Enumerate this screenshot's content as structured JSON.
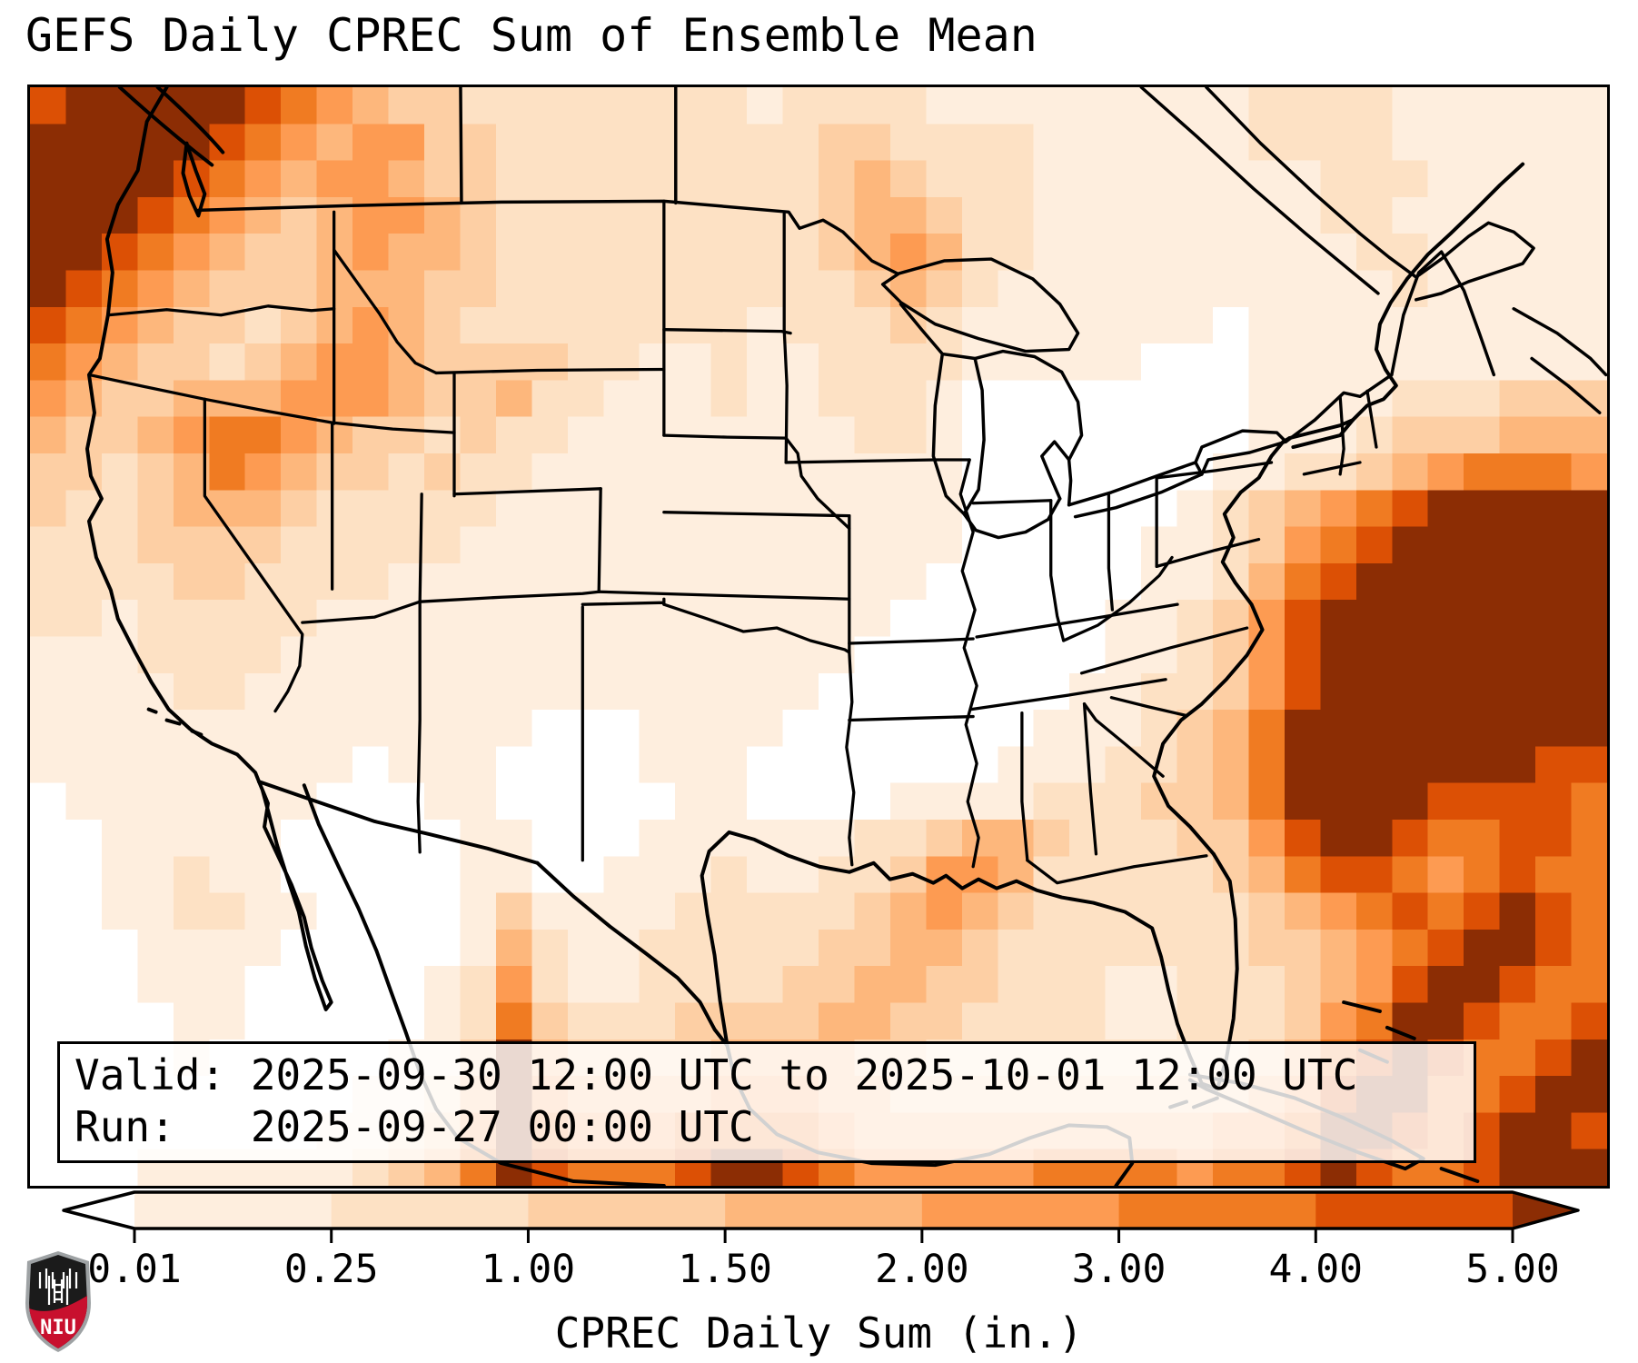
{
  "title": "GEFS Daily CPREC Sum of Ensemble Mean",
  "annotation": {
    "line1": "Valid: 2025-09-30 12:00 UTC to 2025-10-01 12:00 UTC",
    "line2": "Run:   2025-09-27 00:00 UTC"
  },
  "colorbar": {
    "label": "CPREC Daily Sum (in.)",
    "ticks": [
      "0.01",
      "0.25",
      "1.00",
      "1.50",
      "2.00",
      "3.00",
      "4.00",
      "5.00"
    ],
    "bin_colors": [
      "#feeede",
      "#fde1c4",
      "#fdcfa4",
      "#fdb77c",
      "#fd9b52",
      "#f07b22",
      "#dc5005"
    ],
    "under_color": "#ffffff",
    "over_color": "#8c2d04",
    "outline_color": "#000000"
  },
  "logo": {
    "text": "NIU",
    "red": "#c8102e",
    "black": "#1b1b1b",
    "silver": "#9ea2a4"
  },
  "map": {
    "line_color": "#000000",
    "palette": [
      "#ffffff",
      "#feeede",
      "#fde1c4",
      "#fdcfa4",
      "#fdb77c",
      "#fd9b52",
      "#f07b22",
      "#dc5005",
      "#8c2d04"
    ],
    "grid_cols": 44,
    "grid_rows_count": 30,
    "grid_rows": [
      "78888876543322222222122221111111112222111111",
      "88888765455332222222223322221111112222111111",
      "88887654554332222222223432221111111122211111",
      "88876543455432222222223443221111111122111111",
      "88765433454432222222223454221111111112211111",
      "87654333444332222222222343211111111111211111",
      "76543323454322222222122232111111101111111111",
      "65433234554333322112112222111110001111111111",
      "54334445554334221112112221000000001111222333",
      "43345665433232211111111221000000001112333444",
      "33234654332322111111111111000000011223456665",
      "32234443222221111111111111000000123456788888",
      "22233332222211111111111111000001123567888888",
      "22223322221111111111111110000001124678888888",
      "22122222111111111111111100000011235788888888",
      "11122221111111111111111000000011235788888888",
      "11112211111111111111110000000112235788888888",
      "11111111111111000111100000001112346888888888",
      "11111111101110000111000000011122346888888877",
      "01111111000110000011000011112223346888877776",
      "00111110000011000111111223443222335788766776",
      "00112110000011001112112235542222234677656766",
      "00112211000013111122222345432222223456767876",
      "00011110000014211222223344322222223345678876",
      "00011100000125211222233443322211222345788766",
      "00001100000126322233334433222211222356887667",
      "00001000001138433334444332222222223467876678",
      "00000000011248544445554433333333334578866788",
      "00000000112358655566665444444444455688767887",
      "00011111123468766678876555556666566787667888"
    ]
  }
}
